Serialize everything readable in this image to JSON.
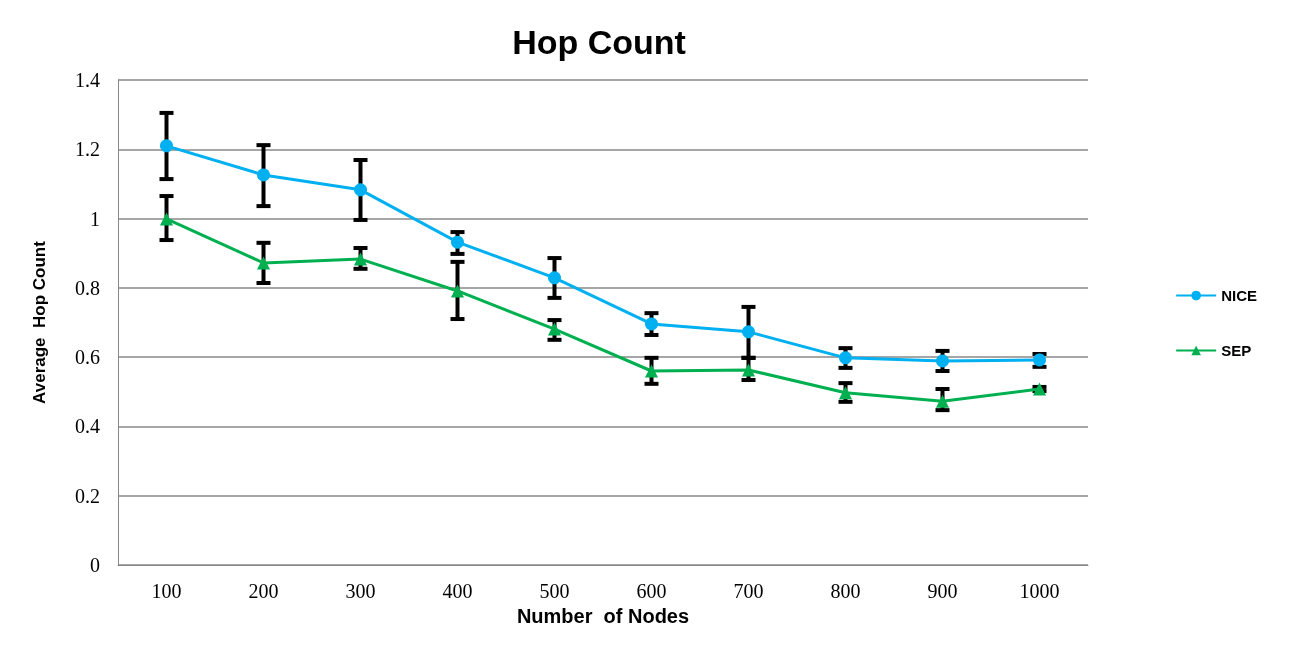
{
  "chart_data": {
    "type": "line",
    "title": "Hop Count",
    "xlabel": "Number  of Nodes",
    "ylabel": "Average  Hop Count",
    "categories": [
      "100",
      "200",
      "300",
      "400",
      "500",
      "600",
      "700",
      "800",
      "900",
      "1000"
    ],
    "ylim": [
      0,
      1.4
    ],
    "yticks": [
      0,
      0.2,
      0.4,
      0.6,
      0.8,
      1,
      1.2,
      1.4
    ],
    "grid": "y",
    "legend": "right",
    "series": [
      {
        "name": "NICE",
        "color": "#00b0f0",
        "marker": "circle",
        "values": [
          1.21,
          1.126,
          1.083,
          0.932,
          0.829,
          0.696,
          0.673,
          0.598,
          0.589,
          0.592
        ],
        "errors": [
          [
            1.114,
            1.305
          ],
          [
            1.036,
            1.212
          ],
          [
            0.996,
            1.169
          ],
          [
            0.898,
            0.961
          ],
          [
            0.771,
            0.886
          ],
          [
            0.664,
            0.727
          ],
          [
            0.598,
            0.745
          ],
          [
            0.569,
            0.626
          ],
          [
            0.56,
            0.618
          ],
          [
            0.572,
            0.609
          ]
        ]
      },
      {
        "name": "SEP",
        "color": "#00b050",
        "marker": "triangle",
        "values": [
          0.999,
          0.872,
          0.883,
          0.791,
          0.681,
          0.56,
          0.563,
          0.497,
          0.473,
          0.508
        ],
        "errors": [
          [
            0.938,
            1.065
          ],
          [
            0.814,
            0.93
          ],
          [
            0.855,
            0.915
          ],
          [
            0.71,
            0.875
          ],
          [
            0.65,
            0.707
          ],
          [
            0.523,
            0.598
          ],
          [
            0.534,
            0.598
          ],
          [
            0.471,
            0.525
          ],
          [
            0.447,
            0.508
          ],
          [
            0.502,
            0.514
          ]
        ]
      }
    ]
  }
}
